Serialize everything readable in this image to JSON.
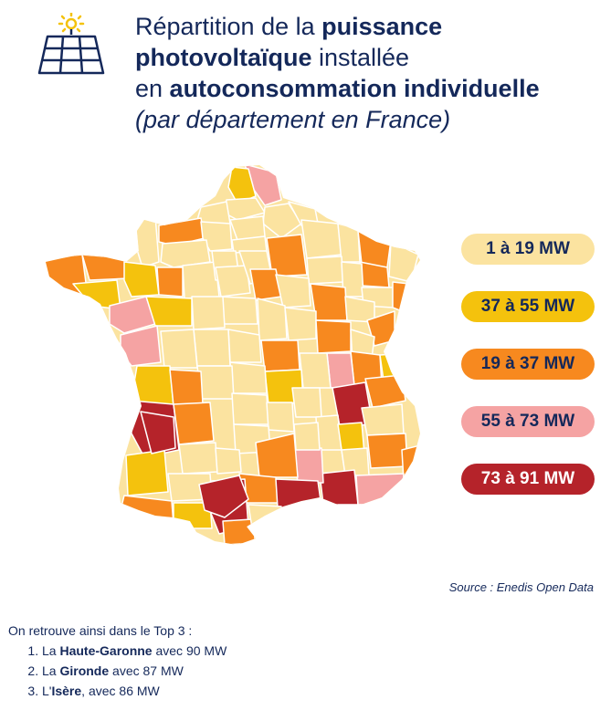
{
  "title": {
    "l1_pre": "Répartition de la ",
    "l1_bold": "puissance",
    "l2_bold": "photovoltaïque",
    "l2_post": " installée",
    "l3_pre": "en ",
    "l3_bold": "autoconsommation individuelle",
    "subtitle": "(par département en France)"
  },
  "legend": [
    {
      "label": "1 à 19 MW",
      "color": "#fbe3a0",
      "text_color": "#14285a"
    },
    {
      "label": "37 à 55 MW",
      "color": "#f4c20d",
      "text_color": "#14285a"
    },
    {
      "label": "19 à 37 MW",
      "color": "#f7891f",
      "text_color": "#14285a"
    },
    {
      "label": "55 à 73 MW",
      "color": "#f5a3a3",
      "text_color": "#14285a"
    },
    {
      "label": "73 à 91 MW",
      "color": "#b5232a",
      "text_color": "#ffffff"
    }
  ],
  "source": "Source : Enedis Open Data",
  "top3": {
    "intro": "On retrouve ainsi dans le Top 3 :",
    "items": [
      {
        "pre": "La ",
        "bold": "Haute-Garonne",
        "post": " avec 90 MW"
      },
      {
        "pre": "La ",
        "bold": "Gironde",
        "post": " avec 87 MW"
      },
      {
        "pre": "L'",
        "bold": "Isère",
        "post": ", avec 86 MW"
      }
    ]
  },
  "icon": "solar-panel-icon"
}
